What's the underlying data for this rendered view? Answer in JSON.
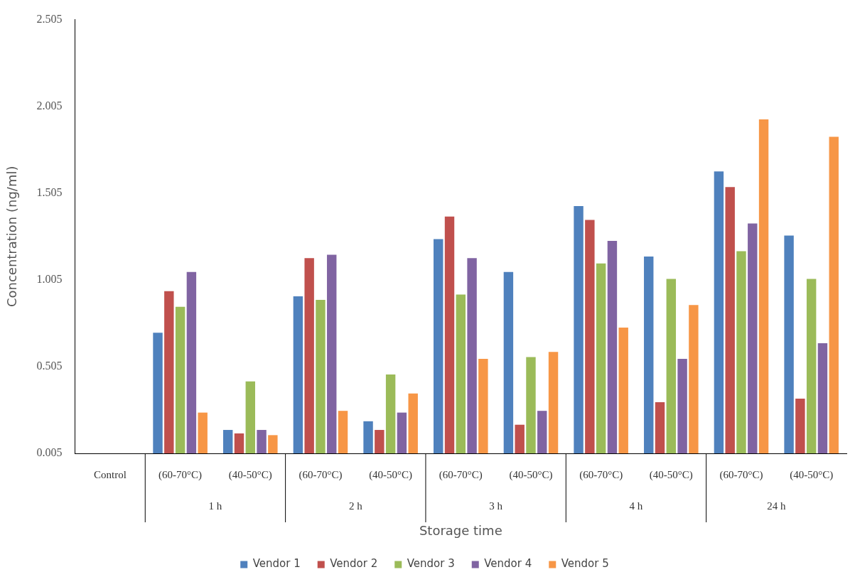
{
  "chart_data": {
    "type": "bar",
    "xlabel": "Storage time",
    "ylabel": "Concentration (ng/ml)",
    "categories": [
      "Control",
      "(60-70°C)",
      "(40-50°C)",
      "(60-70°C)",
      "(40-50°C)",
      "(60-70°C)",
      "(40-50°C)",
      "(60-70°C)",
      "(40-50°C)",
      "(60-70°C)",
      "(40-50°C)"
    ],
    "annotations": [
      "1 h",
      "2 h",
      "3 h",
      "4 h",
      "24 h"
    ],
    "series": [
      {
        "name": "Vendor 1",
        "color": "#4f81bd",
        "values": [
          null,
          0.7,
          0.14,
          0.91,
          0.19,
          1.24,
          1.05,
          1.43,
          1.14,
          1.63,
          1.26
        ]
      },
      {
        "name": "Vendor 2",
        "color": "#c0504d",
        "values": [
          null,
          0.94,
          0.12,
          1.13,
          0.14,
          1.37,
          0.17,
          1.35,
          0.3,
          1.54,
          0.32
        ]
      },
      {
        "name": "Vendor 3",
        "color": "#9bbb59",
        "values": [
          null,
          0.85,
          0.42,
          0.89,
          0.46,
          0.92,
          0.56,
          1.1,
          1.01,
          1.17,
          1.01
        ]
      },
      {
        "name": "Vendor 4",
        "color": "#8064a2",
        "values": [
          null,
          1.05,
          0.14,
          1.15,
          0.24,
          1.13,
          0.25,
          1.23,
          0.55,
          1.33,
          0.64
        ]
      },
      {
        "name": "Vendor 5",
        "color": "#f79646",
        "values": [
          null,
          0.24,
          0.11,
          0.25,
          0.35,
          0.55,
          0.59,
          0.73,
          0.86,
          1.93,
          1.83
        ]
      }
    ],
    "ylim": [
      0.005,
      2.505
    ],
    "yticks": [
      0.005,
      0.505,
      1.005,
      1.505,
      2.005,
      2.505
    ],
    "grid": false,
    "legend": "bottom"
  }
}
